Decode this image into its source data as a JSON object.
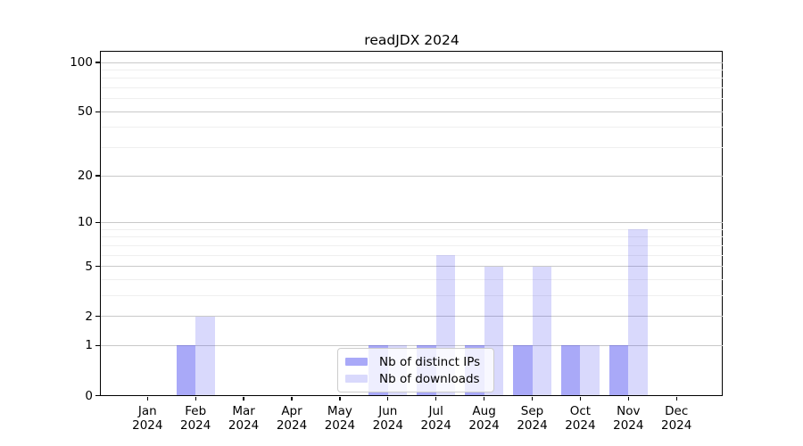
{
  "chart_data": {
    "type": "bar",
    "title": "readJDX 2024",
    "x_axis": {
      "months": [
        "Jan",
        "Feb",
        "Mar",
        "Apr",
        "May",
        "Jun",
        "Jul",
        "Aug",
        "Sep",
        "Oct",
        "Nov",
        "Dec"
      ],
      "year": "2024"
    },
    "y_axis": {
      "scale": "log1p",
      "major_ticks": [
        0,
        1,
        2,
        5,
        10,
        20,
        50,
        100
      ],
      "minor_ticks": [
        3,
        4,
        6,
        7,
        8,
        9,
        30,
        40,
        60,
        70,
        80,
        90
      ],
      "approx_max": 117,
      "grid": true
    },
    "series": [
      {
        "name": "Nb of distinct IPs",
        "key": "distinct-ips",
        "color": "rgba(64,64,240,0.45)",
        "color_hex_on_white": "#a9a9f8",
        "values": [
          0,
          1,
          0,
          0,
          0,
          1,
          1,
          1,
          1,
          1,
          1,
          0
        ]
      },
      {
        "name": "Nb of downloads",
        "key": "downloads",
        "color": "rgba(64,64,240,0.20)",
        "color_hex_on_white": "#dadaf8",
        "values": [
          0,
          2,
          0,
          0,
          0,
          1,
          6,
          5,
          5,
          1,
          9,
          0
        ]
      }
    ],
    "legend_position": "lower center-left inside plot"
  },
  "colors": {
    "background": "#ffffff",
    "major_grid": "#c9c9c9",
    "minor_grid": "#efefef",
    "spine": "#000000",
    "text": "#000000",
    "legend_border": "#cccccc"
  }
}
